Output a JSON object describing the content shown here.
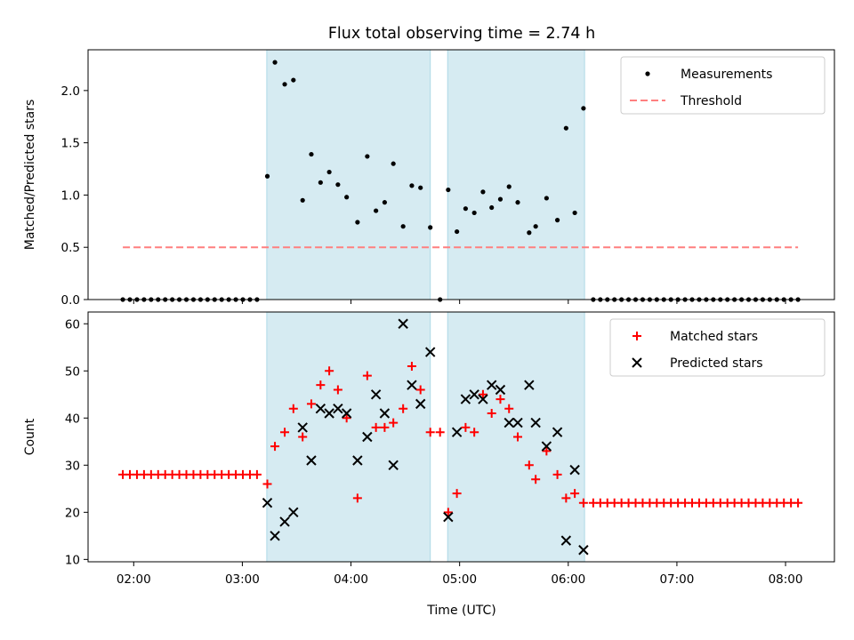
{
  "chart_data": {
    "title": "Flux total observing time = 2.74 h",
    "xlabel": "Time (UTC)",
    "x_unit": "hours UTC",
    "xlim": [
      1.58,
      8.45
    ],
    "xticks": [
      {
        "x": 2,
        "label": "02:00"
      },
      {
        "x": 3,
        "label": "03:00"
      },
      {
        "x": 4,
        "label": "04:00"
      },
      {
        "x": 5,
        "label": "05:00"
      },
      {
        "x": 6,
        "label": "06:00"
      },
      {
        "x": 7,
        "label": "07:00"
      },
      {
        "x": 8,
        "label": "08:00"
      }
    ],
    "shaded_intervals": [
      [
        3.225,
        4.73
      ],
      [
        4.89,
        6.15
      ]
    ],
    "shade_color": "#add8e6",
    "panels": [
      {
        "type": "scatter",
        "ylabel": "Matched/Predicted stars",
        "ylim": [
          0,
          2.39
        ],
        "yticks": [
          0.0,
          0.5,
          1.0,
          1.5,
          2.0
        ],
        "ytick_labels": [
          "0.0",
          "0.5",
          "1.0",
          "1.5",
          "2.0"
        ],
        "legend_position": "top-right",
        "series": [
          {
            "name": "Measurements",
            "kind": "dot",
            "color": "#000000",
            "x": [
              1.9,
              1.965,
              2.03,
              2.095,
              2.16,
              2.225,
              2.29,
              2.355,
              2.42,
              2.485,
              2.55,
              2.615,
              2.68,
              2.745,
              2.81,
              2.875,
              2.94,
              3.005,
              3.07,
              3.135,
              3.23,
              3.3,
              3.39,
              3.47,
              3.555,
              3.635,
              3.72,
              3.8,
              3.88,
              3.96,
              4.06,
              4.15,
              4.23,
              4.31,
              4.39,
              4.48,
              4.56,
              4.64,
              4.73,
              4.82,
              4.895,
              4.975,
              5.055,
              5.135,
              5.215,
              5.295,
              5.375,
              5.455,
              5.535,
              5.64,
              5.7,
              5.8,
              5.9,
              5.98,
              6.06,
              6.14,
              6.23,
              6.295,
              6.36,
              6.425,
              6.49,
              6.555,
              6.62,
              6.685,
              6.75,
              6.815,
              6.88,
              6.945,
              7.01,
              7.075,
              7.14,
              7.205,
              7.27,
              7.335,
              7.4,
              7.465,
              7.53,
              7.595,
              7.66,
              7.725,
              7.79,
              7.855,
              7.92,
              7.985,
              8.05,
              8.115
            ],
            "y": [
              0,
              0,
              0,
              0,
              0,
              0,
              0,
              0,
              0,
              0,
              0,
              0,
              0,
              0,
              0,
              0,
              0,
              0,
              0,
              0,
              1.18,
              2.27,
              2.06,
              2.1,
              0.95,
              1.39,
              1.12,
              1.22,
              1.1,
              0.98,
              0.74,
              1.37,
              0.85,
              0.93,
              1.3,
              0.7,
              1.09,
              1.07,
              0.69,
              0.0,
              1.05,
              0.65,
              0.87,
              0.83,
              1.03,
              0.88,
              0.96,
              1.08,
              0.93,
              0.64,
              0.7,
              0.97,
              0.76,
              1.64,
              0.83,
              1.83,
              0,
              0,
              0,
              0,
              0,
              0,
              0,
              0,
              0,
              0,
              0,
              0,
              0,
              0,
              0,
              0,
              0,
              0,
              0,
              0,
              0,
              0,
              0,
              0,
              0,
              0,
              0,
              0,
              0,
              0
            ]
          },
          {
            "name": "Threshold",
            "kind": "dashed-line",
            "color": "#ff7f7f",
            "x": [
              1.9,
              8.115
            ],
            "y": [
              0.5,
              0.5
            ]
          }
        ]
      },
      {
        "type": "scatter",
        "ylabel": "Count",
        "ylim": [
          9.5,
          62.5
        ],
        "yticks": [
          10,
          20,
          30,
          40,
          50,
          60
        ],
        "ytick_labels": [
          "10",
          "20",
          "30",
          "40",
          "50",
          "60"
        ],
        "legend_position": "top-right",
        "series": [
          {
            "name": "Matched stars",
            "kind": "plus",
            "color": "#ff0000",
            "x": [
              1.9,
              1.965,
              2.03,
              2.095,
              2.16,
              2.225,
              2.29,
              2.355,
              2.42,
              2.485,
              2.55,
              2.615,
              2.68,
              2.745,
              2.81,
              2.875,
              2.94,
              3.005,
              3.07,
              3.135,
              3.23,
              3.3,
              3.39,
              3.47,
              3.555,
              3.635,
              3.72,
              3.8,
              3.88,
              3.96,
              4.06,
              4.15,
              4.23,
              4.31,
              4.39,
              4.48,
              4.56,
              4.64,
              4.73,
              4.82,
              4.895,
              4.975,
              5.055,
              5.135,
              5.215,
              5.295,
              5.375,
              5.455,
              5.535,
              5.64,
              5.7,
              5.8,
              5.9,
              5.98,
              6.06,
              6.14,
              6.23,
              6.295,
              6.36,
              6.425,
              6.49,
              6.555,
              6.62,
              6.685,
              6.75,
              6.815,
              6.88,
              6.945,
              7.01,
              7.075,
              7.14,
              7.205,
              7.27,
              7.335,
              7.4,
              7.465,
              7.53,
              7.595,
              7.66,
              7.725,
              7.79,
              7.855,
              7.92,
              7.985,
              8.05,
              8.115
            ],
            "y": [
              28,
              28,
              28,
              28,
              28,
              28,
              28,
              28,
              28,
              28,
              28,
              28,
              28,
              28,
              28,
              28,
              28,
              28,
              28,
              28,
              26,
              34,
              37,
              42,
              36,
              43,
              47,
              50,
              46,
              40,
              23,
              49,
              38,
              38,
              39,
              42,
              51,
              46,
              37,
              37,
              20,
              24,
              38,
              37,
              45,
              41,
              44,
              42,
              36,
              30,
              27,
              33,
              28,
              23,
              24,
              22,
              22,
              22,
              22,
              22,
              22,
              22,
              22,
              22,
              22,
              22,
              22,
              22,
              22,
              22,
              22,
              22,
              22,
              22,
              22,
              22,
              22,
              22,
              22,
              22,
              22,
              22,
              22,
              22,
              22,
              22
            ]
          },
          {
            "name": "Predicted stars",
            "kind": "x",
            "color": "#000000",
            "x": [
              3.23,
              3.3,
              3.39,
              3.47,
              3.555,
              3.635,
              3.72,
              3.8,
              3.88,
              3.96,
              4.06,
              4.15,
              4.23,
              4.31,
              4.39,
              4.48,
              4.56,
              4.64,
              4.73,
              4.895,
              4.975,
              5.055,
              5.135,
              5.215,
              5.295,
              5.375,
              5.455,
              5.535,
              5.64,
              5.7,
              5.8,
              5.9,
              5.98,
              6.06,
              6.14
            ],
            "y": [
              22,
              15,
              18,
              20,
              38,
              31,
              42,
              41,
              42,
              41,
              31,
              36,
              45,
              41,
              30,
              60,
              47,
              43,
              54,
              19,
              37,
              44,
              45,
              44,
              47,
              46,
              39,
              39,
              47,
              39,
              34,
              37,
              14,
              29,
              12
            ]
          }
        ]
      }
    ]
  }
}
